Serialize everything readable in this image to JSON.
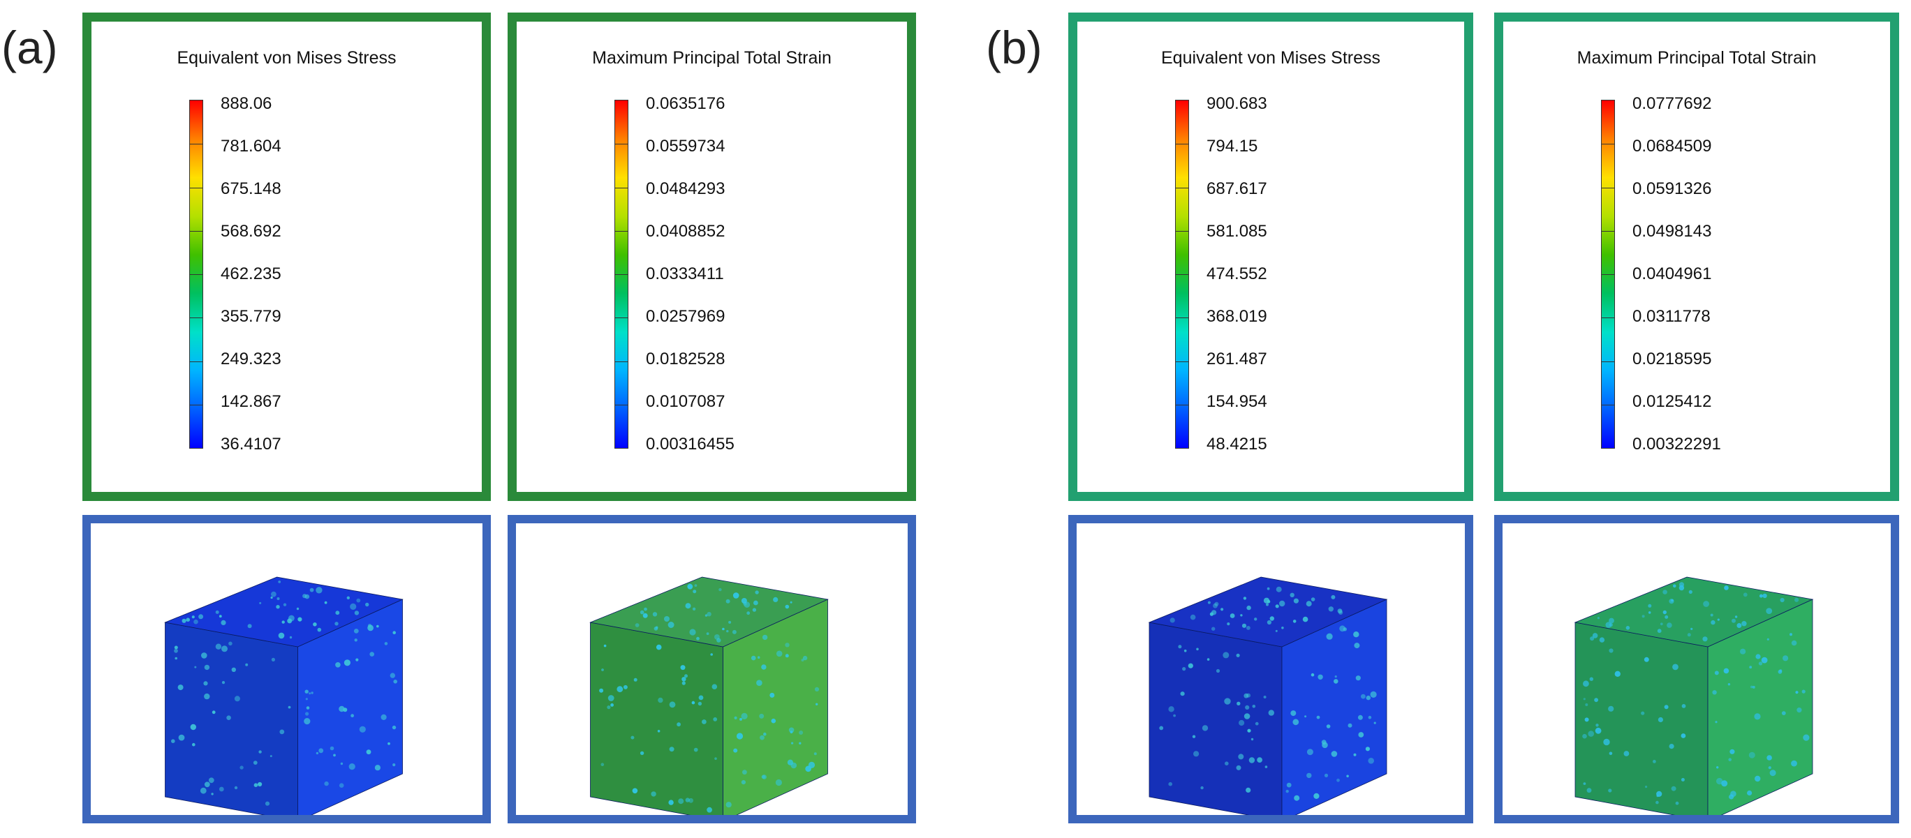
{
  "panels": [
    {
      "tag": "(a)",
      "frame_color": "#2a8a3a",
      "legends": [
        {
          "title": "Equivalent von Mises Stress",
          "ticks": [
            "888.06",
            "781.604",
            "675.148",
            "568.692",
            "462.235",
            "355.779",
            "249.323",
            "142.867",
            "36.4107"
          ]
        },
        {
          "title": "Maximum Principal Total Strain",
          "ticks": [
            "0.0635176",
            "0.0559734",
            "0.0484293",
            "0.0408852",
            "0.0333411",
            "0.0257969",
            "0.0182528",
            "0.0107087",
            "0.00316455"
          ]
        }
      ],
      "samples": [
        {
          "name": "stress-cube",
          "top": "#1638d8",
          "left": "#143cc2",
          "right": "#1a48e6",
          "spot": "#3fc8d8"
        },
        {
          "name": "strain-cube",
          "top": "#3a9e52",
          "left": "#2f8f40",
          "right": "#4ab048",
          "spot": "#30c8e8"
        }
      ]
    },
    {
      "tag": "(b)",
      "frame_color": "#22a070",
      "legends": [
        {
          "title": "Equivalent von Mises Stress",
          "ticks": [
            "900.683",
            "794.15",
            "687.617",
            "581.085",
            "474.552",
            "368.019",
            "261.487",
            "154.954",
            "48.4215"
          ]
        },
        {
          "title": "Maximum Principal Total Strain",
          "ticks": [
            "0.0777692",
            "0.0684509",
            "0.0591326",
            "0.0498143",
            "0.0404961",
            "0.0311778",
            "0.0218595",
            "0.0125412",
            "0.00322291"
          ]
        }
      ],
      "samples": [
        {
          "name": "stress-cube",
          "top": "#1832c4",
          "left": "#1530b8",
          "right": "#1a44e0",
          "spot": "#3fc8d8"
        },
        {
          "name": "strain-cube",
          "top": "#28a060",
          "left": "#249458",
          "right": "#2fae62",
          "spot": "#30c0e8"
        }
      ]
    }
  ],
  "sample_frame_color": "#3c66bc",
  "colormap": [
    "#0000ff",
    "#0060ff",
    "#00b4ff",
    "#00e0c8",
    "#00c060",
    "#40c000",
    "#b4e000",
    "#ffe000",
    "#ff8000",
    "#ff0000"
  ]
}
